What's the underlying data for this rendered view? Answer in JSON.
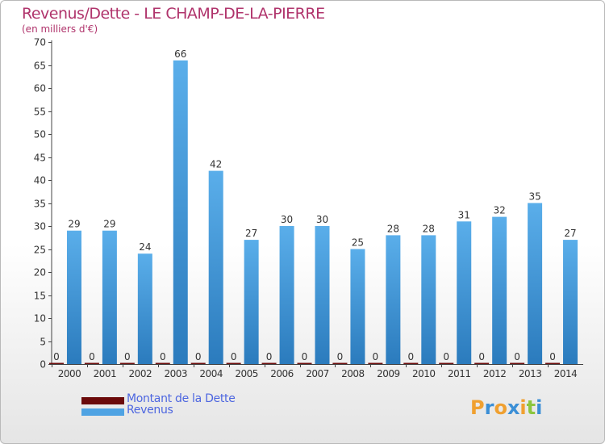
{
  "title": "Revenus/Dette - LE CHAMP-DE-LA-PIERRE",
  "subtitle": "(en milliers d'€)",
  "logo": {
    "text": "Proxiti",
    "letters": [
      "P",
      "r",
      "o",
      "x",
      "i",
      "t",
      "i"
    ],
    "colors": [
      "#f0a030",
      "#3b8fd6",
      "#f0a030",
      "#3b8fd6",
      "#f0a030",
      "#8cc63f",
      "#3b8fd6"
    ]
  },
  "colors": {
    "revenus": "#4fa3e3",
    "revenus_dark": "#2e7fc0",
    "dette": "#6b0a0a",
    "title": "#b0346c",
    "legend_text": "#4d66e0"
  },
  "legend": [
    {
      "label": "Montant de la Dette",
      "color": "#6b0a0a"
    },
    {
      "label": "Revenus",
      "color": "#4fa3e3"
    }
  ],
  "chart_data": {
    "type": "bar",
    "categories": [
      "2000",
      "2001",
      "2002",
      "2003",
      "2004",
      "2005",
      "2006",
      "2007",
      "2008",
      "2009",
      "2010",
      "2011",
      "2012",
      "2013",
      "2014"
    ],
    "series": [
      {
        "name": "Montant de la Dette",
        "values": [
          0,
          0,
          0,
          0,
          0,
          0,
          0,
          0,
          0,
          0,
          0,
          0,
          0,
          0,
          0
        ]
      },
      {
        "name": "Revenus",
        "values": [
          29,
          29,
          24,
          66,
          42,
          27,
          30,
          30,
          25,
          28,
          28,
          31,
          32,
          35,
          27
        ]
      }
    ],
    "ylim": [
      0,
      70
    ],
    "yticks": [
      0,
      5,
      10,
      15,
      20,
      25,
      30,
      35,
      40,
      45,
      50,
      55,
      60,
      65,
      70
    ],
    "grid": false,
    "legend_position": "bottom-left"
  }
}
